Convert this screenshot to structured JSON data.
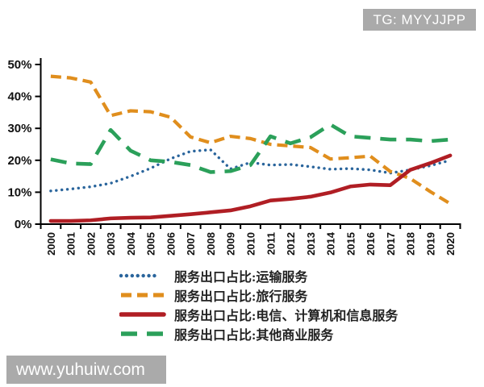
{
  "badges": {
    "tg": "TG: MYYJJPP",
    "watermark": "www.yuhuiw.com"
  },
  "chart_data": {
    "type": "line",
    "title": "",
    "xlabel": "",
    "ylabel": "",
    "x": [
      "2000",
      "2001",
      "2002",
      "2003",
      "2004",
      "2005",
      "2006",
      "2007",
      "2008",
      "2009",
      "2010",
      "2011",
      "2012",
      "2013",
      "2014",
      "2015",
      "2016",
      "2017",
      "2018",
      "2019",
      "2020"
    ],
    "ylim": [
      0,
      50
    ],
    "yticks": [
      "0%",
      "10%",
      "20%",
      "30%",
      "40%",
      "50%"
    ],
    "grid": false,
    "legend_position": "bottom",
    "series": [
      {
        "name": "服务出口占比:运输服务",
        "style": "dotted",
        "color": "#2A659C",
        "values": [
          10.4,
          11.0,
          11.7,
          12.8,
          15.0,
          17.5,
          20.5,
          22.8,
          23.3,
          17.3,
          19.3,
          18.5,
          18.7,
          18.0,
          17.2,
          17.4,
          17.0,
          16.0,
          17.0,
          18.3,
          20.0
        ]
      },
      {
        "name": "服务出口占比:旅行服务",
        "style": "dashed",
        "color": "#E08E1D",
        "values": [
          46.3,
          45.8,
          44.5,
          34.0,
          35.5,
          35.2,
          33.5,
          27.3,
          25.5,
          27.5,
          26.8,
          25.0,
          24.5,
          24.0,
          20.4,
          20.8,
          21.3,
          16.5,
          14.3,
          10.2,
          6.4
        ]
      },
      {
        "name": "服务出口占比:电信、计算机和信息服务",
        "style": "solid",
        "color": "#B01E24",
        "values": [
          1.0,
          1.0,
          1.2,
          1.8,
          2.0,
          2.1,
          2.6,
          3.1,
          3.7,
          4.3,
          5.6,
          7.4,
          7.9,
          8.6,
          9.9,
          11.8,
          12.4,
          12.2,
          17.0,
          19.1,
          21.5
        ]
      },
      {
        "name": "服务出口占比:其他商业服务",
        "style": "longdash",
        "color": "#2BA05A",
        "values": [
          20.3,
          19.0,
          18.8,
          29.5,
          23.0,
          20.0,
          19.5,
          18.5,
          16.3,
          16.6,
          18.5,
          27.5,
          25.3,
          27.2,
          31.2,
          27.5,
          27.0,
          26.5,
          26.5,
          26.0,
          26.5
        ]
      }
    ]
  }
}
